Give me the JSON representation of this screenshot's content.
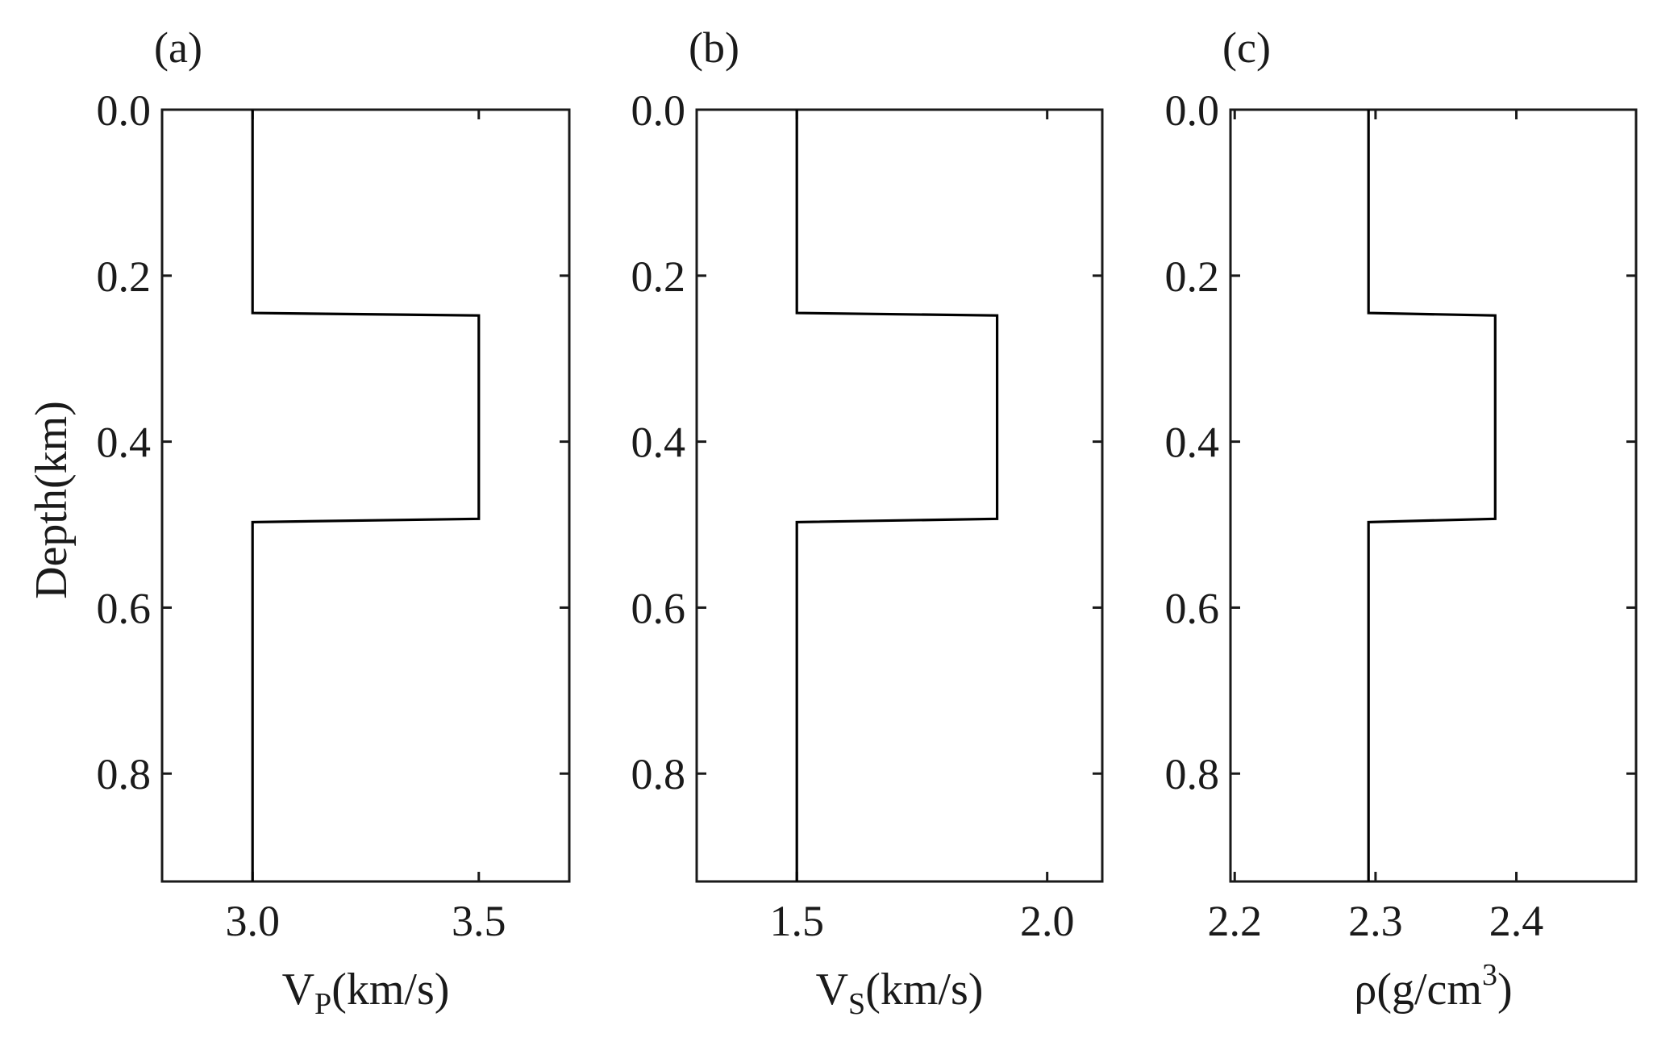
{
  "chart_data": [
    {
      "type": "line",
      "panel_label": "(a)",
      "xlabel_main": "V",
      "xlabel_sub": "P",
      "xlabel_rest": "(km/s)",
      "xlabel_sup": "",
      "ylabel": "Depth(km)",
      "xlim": [
        2.8,
        3.7
      ],
      "ylim": [
        0.93,
        0.0
      ],
      "x_ticks": [
        3.0,
        3.5
      ],
      "x_tick_labels": [
        "3.0",
        "3.5"
      ],
      "y_ticks": [
        0.0,
        0.2,
        0.4,
        0.6,
        0.8
      ],
      "y_tick_labels": [
        "0.0",
        "0.2",
        "0.4",
        "0.6",
        "0.8"
      ],
      "series": [
        {
          "x": [
            3.0,
            3.0,
            3.5,
            3.5,
            3.0,
            3.0
          ],
          "y": [
            0.0,
            0.245,
            0.248,
            0.493,
            0.497,
            0.93
          ]
        }
      ],
      "grid": false
    },
    {
      "type": "line",
      "panel_label": "(b)",
      "xlabel_main": "V",
      "xlabel_sub": "S",
      "xlabel_rest": "(km/s)",
      "xlabel_sup": "",
      "ylabel": "",
      "xlim": [
        1.3,
        2.11
      ],
      "ylim": [
        0.93,
        0.0
      ],
      "x_ticks": [
        1.5,
        2.0
      ],
      "x_tick_labels": [
        "1.5",
        "2.0"
      ],
      "y_ticks": [
        0.0,
        0.2,
        0.4,
        0.6,
        0.8
      ],
      "y_tick_labels": [
        "0.0",
        "0.2",
        "0.4",
        "0.6",
        "0.8"
      ],
      "series": [
        {
          "x": [
            1.5,
            1.5,
            1.9,
            1.9,
            1.5,
            1.5
          ],
          "y": [
            0.0,
            0.245,
            0.248,
            0.493,
            0.497,
            0.93
          ]
        }
      ],
      "grid": false
    },
    {
      "type": "line",
      "panel_label": "(c)",
      "xlabel_main": "ρ(g/cm",
      "xlabel_sub": "",
      "xlabel_rest": ")",
      "xlabel_sup": "3",
      "ylabel": "",
      "xlim": [
        2.197,
        2.485
      ],
      "ylim": [
        0.93,
        0.0
      ],
      "x_ticks": [
        2.2,
        2.3,
        2.4
      ],
      "x_tick_labels": [
        "2.2",
        "2.3",
        "2.4"
      ],
      "y_ticks": [
        0.0,
        0.2,
        0.4,
        0.6,
        0.8
      ],
      "y_tick_labels": [
        "0.0",
        "0.2",
        "0.4",
        "0.6",
        "0.8"
      ],
      "series": [
        {
          "x": [
            2.295,
            2.295,
            2.385,
            2.385,
            2.295,
            2.295
          ],
          "y": [
            0.0,
            0.245,
            0.248,
            0.493,
            0.497,
            0.93
          ]
        }
      ],
      "grid": false
    }
  ]
}
